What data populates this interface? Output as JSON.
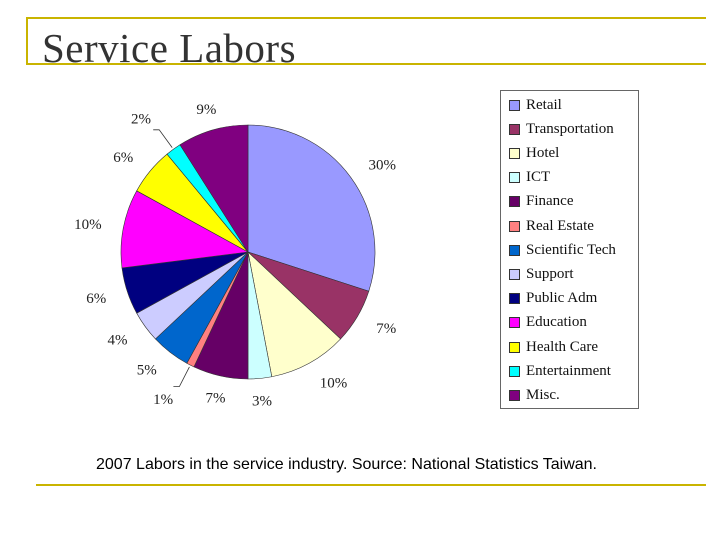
{
  "slide": {
    "title": "Service Labors"
  },
  "caption": "2007 Labors in the service industry. Source: National Statistics Taiwan.",
  "chart_data": {
    "type": "pie",
    "start_angle_deg": 0,
    "direction": "clockwise",
    "legend_position": "right",
    "series": [
      {
        "name": "Retail",
        "value": 30,
        "label": "30%",
        "color": "#9999ff"
      },
      {
        "name": "Transportation",
        "value": 7,
        "label": "7%",
        "color": "#993366"
      },
      {
        "name": "Hotel",
        "value": 10,
        "label": "10%",
        "color": "#ffffcc"
      },
      {
        "name": "ICT",
        "value": 3,
        "label": "3%",
        "color": "#ccffff"
      },
      {
        "name": "Finance",
        "value": 7,
        "label": "7%",
        "color": "#660066"
      },
      {
        "name": "Real Estate",
        "value": 1,
        "label": "1%",
        "color": "#ff8080"
      },
      {
        "name": "Scientific Tech",
        "value": 5,
        "label": "5%",
        "color": "#0066cc"
      },
      {
        "name": "Support",
        "value": 4,
        "label": "4%",
        "color": "#ccccff"
      },
      {
        "name": "Public Adm",
        "value": 6,
        "label": "6%",
        "color": "#000080"
      },
      {
        "name": "Education",
        "value": 10,
        "label": "10%",
        "color": "#ff00ff"
      },
      {
        "name": "Health Care",
        "value": 6,
        "label": "6%",
        "color": "#ffff00"
      },
      {
        "name": "Entertainment",
        "value": 2,
        "label": "2%",
        "color": "#00ffff"
      },
      {
        "name": "Misc.",
        "value": 9,
        "label": "9%",
        "color": "#800080"
      }
    ]
  },
  "colors": {
    "accent_line": "#c9b400"
  }
}
